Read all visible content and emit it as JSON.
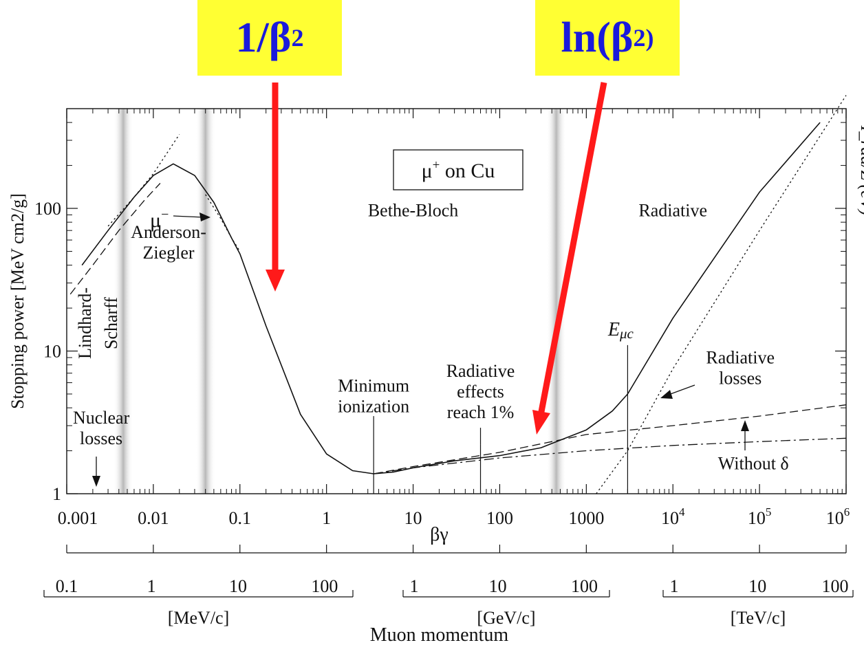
{
  "callouts": [
    {
      "base": "1/β",
      "sup": "2",
      "color": "#1a1adb",
      "background": "#ffff33",
      "arrow_color": "#ff1a1a"
    },
    {
      "base": "ln(β",
      "sup": "2)",
      "color": "#1a1adb",
      "background": "#ffff33",
      "arrow_color": "#ff1a1a"
    }
  ],
  "chart_data": {
    "type": "line",
    "x_scale": "log",
    "y_scale": "log",
    "xlim": [
      0.001,
      1000000
    ],
    "ylim": [
      1,
      500
    ],
    "x_tick_labels": [
      "0.001",
      "0.01",
      "0.1",
      "1",
      "10",
      "100",
      "1000",
      "10^4",
      "10^5",
      "10^6"
    ],
    "xlabel": "βγ",
    "y_tick_labels": [
      "1",
      "10",
      "100"
    ],
    "ylabel": "Stopping power [MeV cm2/g]",
    "right_axis_label": "I_rad/Z (eV)",
    "legend_box": "μ+ on Cu",
    "series": [
      {
        "style": "solid",
        "x": [
          0.0015,
          0.003,
          0.006,
          0.01,
          0.017,
          0.03,
          0.05,
          0.08,
          0.1,
          0.2,
          0.5,
          1,
          2,
          3.5,
          6,
          10,
          30,
          100,
          300,
          1000,
          2000,
          3000,
          10000,
          100000,
          500000
        ],
        "y": [
          40,
          70,
          120,
          170,
          205,
          170,
          110,
          62,
          48,
          15,
          3.6,
          1.9,
          1.45,
          1.38,
          1.42,
          1.52,
          1.7,
          1.85,
          2.1,
          2.8,
          3.8,
          5,
          17,
          130,
          400
        ]
      },
      {
        "style": "dashed",
        "x": [
          0.0011,
          0.002,
          0.004,
          0.008,
          0.012
        ],
        "y": [
          25,
          40,
          70,
          115,
          150
        ]
      },
      {
        "style": "dotted",
        "x": [
          0.003,
          0.006,
          0.01,
          0.02
        ],
        "y": [
          75,
          120,
          175,
          330
        ]
      },
      {
        "style": "dotted",
        "x": [
          0.04,
          0.06,
          0.08,
          0.1
        ],
        "y": [
          125,
          85,
          62,
          50
        ]
      },
      {
        "style": "dashed",
        "x": [
          3.5,
          10,
          100,
          1000,
          10000,
          100000,
          1000000
        ],
        "y": [
          1.38,
          1.55,
          1.95,
          2.6,
          3.0,
          3.5,
          4.2
        ]
      },
      {
        "style": "dashdot",
        "x": [
          3.5,
          10,
          100,
          1000,
          10000,
          100000,
          1000000
        ],
        "y": [
          1.38,
          1.52,
          1.78,
          2.0,
          2.18,
          2.32,
          2.45
        ]
      },
      {
        "style": "dotted",
        "x": [
          1300,
          3000,
          10000,
          100000,
          1000000
        ],
        "y": [
          1,
          2,
          7.5,
          70,
          620
        ]
      }
    ],
    "verticals": [
      {
        "x": 3.5,
        "y_top": 1.38
      },
      {
        "x": 60,
        "y_top": 2.2
      },
      {
        "x": 3000,
        "y_top": 11
      }
    ],
    "bands": [
      0.0045,
      0.04,
      450
    ],
    "annotations": [
      {
        "lines": [
          "Bethe-Bloch"
        ],
        "x": 10,
        "y": 88
      },
      {
        "lines": [
          "Radiative"
        ],
        "x": 10000,
        "y": 88
      },
      {
        "lines": [
          "Anderson-",
          "Ziegler"
        ],
        "x": 0.015,
        "y": 62
      },
      {
        "lines": [
          "Minimum",
          "ionization"
        ],
        "x": 3.5,
        "y": 5.2
      },
      {
        "lines": [
          "Radiative",
          "effects",
          "reach 1%"
        ],
        "x": 60,
        "y": 6.6
      },
      {
        "lines": [
          "Radiative",
          "losses"
        ],
        "x": 60000,
        "y": 8.2
      },
      {
        "lines": [
          "Nuclear",
          "losses"
        ],
        "x": 0.0025,
        "y": 3.1
      },
      {
        "lines": [
          "Without δ"
        ],
        "x": 85000,
        "y": 1.48
      }
    ],
    "vertical_text": [
      "Lindhard-",
      "Scharff"
    ],
    "mu_minus_label": "μ−",
    "emuc_label": "Eμc",
    "momentum_axes": [
      {
        "unit": "[MeV/c]",
        "ticks": [
          "0.1",
          "1",
          "10",
          "100"
        ],
        "ticks_x": [
          0.001,
          0.0095,
          0.095,
          0.95
        ]
      },
      {
        "unit": "[GeV/c]",
        "ticks": [
          "1",
          "10",
          "100"
        ],
        "ticks_x": [
          9.5,
          95,
          950
        ]
      },
      {
        "unit": "[TeV/c]",
        "ticks": [
          "1",
          "10",
          "100"
        ],
        "ticks_x": [
          9500,
          95000,
          950000
        ]
      }
    ],
    "momentum_title": "Muon momentum"
  }
}
